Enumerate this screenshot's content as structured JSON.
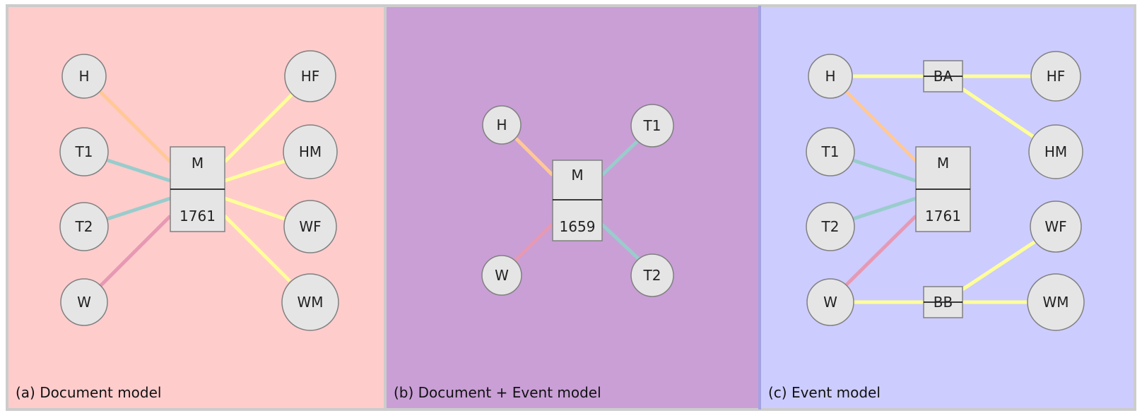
{
  "colors": {
    "panel_a_bg": "#ffcccc",
    "panel_b_bg": "#c99fd6",
    "panel_c_bg": "#ccccff",
    "frame": "#cccccc",
    "edge_husband": "#ffc896",
    "edge_witness": "#99cccc",
    "edge_wife": "#e699b3",
    "edge_family": "#ffff99"
  },
  "panels": [
    {
      "id": "a",
      "label": "(a) Document model",
      "record": {
        "top": "M",
        "bottom": "1761"
      },
      "nodes": {
        "H": "H",
        "T1": "T1",
        "T2": "T2",
        "W": "W",
        "HF": "HF",
        "HM": "HM",
        "WF": "WF",
        "WM": "WM"
      }
    },
    {
      "id": "b",
      "label": "(b) Document + Event model",
      "record": {
        "top": "M",
        "bottom": "1659"
      },
      "nodes": {
        "H": "H",
        "T1": "T1",
        "W": "W",
        "T2": "T2"
      }
    },
    {
      "id": "c",
      "label": "(c) Event model",
      "record": {
        "top": "M",
        "bottom": "1761"
      },
      "nodes": {
        "H": "H",
        "T1": "T1",
        "T2": "T2",
        "W": "W",
        "HF": "HF",
        "HM": "HM",
        "WF": "WF",
        "WM": "WM",
        "BA": "BA",
        "BB": "BB"
      }
    }
  ]
}
